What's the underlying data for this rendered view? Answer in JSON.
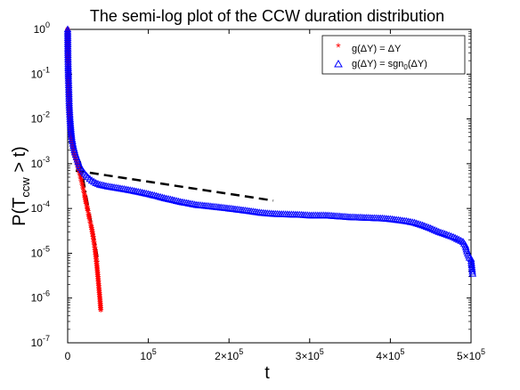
{
  "chart_data": {
    "type": "scatter",
    "title": "The semi-log plot of the CCW duration distribution",
    "xlabel": "t",
    "ylabel": "P(T_ccw > t)",
    "ylabel_parts": {
      "main": "P(T",
      "sub": "ccw",
      "tail": " > t)"
    },
    "xscale": "linear",
    "yscale": "log",
    "xlim": [
      0,
      500000
    ],
    "ylim": [
      1e-07,
      1
    ],
    "grid": false,
    "legend_position": "top-right",
    "x_ticks": [
      {
        "value": 0,
        "label": "0"
      },
      {
        "value": 100000,
        "label": "10",
        "exp": "5",
        "mult": ""
      },
      {
        "value": 200000,
        "label": "2×10",
        "exp": "5"
      },
      {
        "value": 300000,
        "label": "3×10",
        "exp": "5"
      },
      {
        "value": 400000,
        "label": "4×10",
        "exp": "5"
      },
      {
        "value": 500000,
        "label": "5×10",
        "exp": "5"
      }
    ],
    "y_ticks": [
      {
        "value": 1e-07,
        "label": "10",
        "exp": "-7"
      },
      {
        "value": 1e-06,
        "label": "10",
        "exp": "-6"
      },
      {
        "value": 1e-05,
        "label": "10",
        "exp": "-5"
      },
      {
        "value": 0.0001,
        "label": "10",
        "exp": "-4"
      },
      {
        "value": 0.001,
        "label": "10",
        "exp": "-3"
      },
      {
        "value": 0.01,
        "label": "10",
        "exp": "-2"
      },
      {
        "value": 0.1,
        "label": "10",
        "exp": "-1"
      },
      {
        "value": 1,
        "label": "10",
        "exp": "0"
      }
    ],
    "series": [
      {
        "name": "g(ΔY) = ΔY",
        "marker": "asterisk",
        "color": "#ff0000",
        "points": [
          [
            0,
            1.0
          ],
          [
            200,
            0.6
          ],
          [
            400,
            0.3
          ],
          [
            600,
            0.2
          ],
          [
            800,
            0.12
          ],
          [
            1000,
            0.08
          ],
          [
            1300,
            0.05
          ],
          [
            1600,
            0.03
          ],
          [
            2000,
            0.02
          ],
          [
            2500,
            0.012
          ],
          [
            3000,
            0.008
          ],
          [
            3500,
            0.006
          ],
          [
            4000,
            0.0045
          ],
          [
            5000,
            0.0032
          ],
          [
            6000,
            0.0025
          ],
          [
            7000,
            0.002
          ],
          [
            8000,
            0.0017
          ],
          [
            9000,
            0.0015
          ],
          [
            10000,
            0.0013
          ],
          [
            11000,
            0.0011
          ],
          [
            12000,
            0.00095
          ],
          [
            13000,
            0.00082
          ],
          [
            14000,
            0.0007
          ],
          [
            15000,
            0.0006
          ],
          [
            16000,
            0.0005
          ],
          [
            17000,
            0.00042
          ],
          [
            18000,
            0.00035
          ],
          [
            19000,
            0.00029
          ],
          [
            20000,
            0.00024
          ],
          [
            21000,
            0.0002
          ],
          [
            22000,
            0.00016
          ],
          [
            23000,
            0.00013
          ],
          [
            24000,
            0.00011
          ],
          [
            25000,
            9e-05
          ],
          [
            26000,
            7.5e-05
          ],
          [
            27000,
            6e-05
          ],
          [
            28000,
            5e-05
          ],
          [
            29000,
            4.2e-05
          ],
          [
            30000,
            3.4e-05
          ],
          [
            31000,
            2.7e-05
          ],
          [
            32000,
            2.1e-05
          ],
          [
            33000,
            1.6e-05
          ],
          [
            34000,
            1.2e-05
          ],
          [
            35000,
            8.5e-06
          ],
          [
            36000,
            5.8e-06
          ],
          [
            37000,
            3.8e-06
          ],
          [
            38000,
            2.4e-06
          ],
          [
            39000,
            1.5e-06
          ],
          [
            40000,
            9.5e-07
          ],
          [
            41000,
            5.5e-07
          ]
        ]
      },
      {
        "name": "g(ΔY) = sgn_0(ΔY)",
        "name_parts": {
          "main": "g(ΔY) = sgn",
          "sub": "0",
          "tail": "(ΔY)"
        },
        "marker": "triangle",
        "color": "#0000ff",
        "points": [
          [
            0,
            1.0
          ],
          [
            300,
            0.3
          ],
          [
            600,
            0.15
          ],
          [
            1000,
            0.08
          ],
          [
            1500,
            0.04
          ],
          [
            2000,
            0.02
          ],
          [
            3000,
            0.01
          ],
          [
            4000,
            0.006
          ],
          [
            5000,
            0.004
          ],
          [
            7000,
            0.0025
          ],
          [
            9000,
            0.0018
          ],
          [
            11000,
            0.0014
          ],
          [
            13000,
            0.0011
          ],
          [
            15000,
            0.00088
          ],
          [
            18000,
            0.00072
          ],
          [
            21000,
            0.0006
          ],
          [
            25000,
            0.0005
          ],
          [
            30000,
            0.00042
          ],
          [
            35000,
            0.00037
          ],
          [
            40000,
            0.00034
          ],
          [
            50000,
            0.00031
          ],
          [
            60000,
            0.00029
          ],
          [
            70000,
            0.00027
          ],
          [
            80000,
            0.00025
          ],
          [
            90000,
            0.00023
          ],
          [
            100000,
            0.00021
          ],
          [
            110000,
            0.00019
          ],
          [
            120000,
            0.00017
          ],
          [
            130000,
            0.000155
          ],
          [
            140000,
            0.00014
          ],
          [
            150000,
            0.00013
          ],
          [
            160000,
            0.00012
          ],
          [
            170000,
            0.000115
          ],
          [
            180000,
            0.00011
          ],
          [
            190000,
            0.000105
          ],
          [
            200000,
            0.0001
          ],
          [
            210000,
            9.5e-05
          ],
          [
            220000,
            9e-05
          ],
          [
            230000,
            8.5e-05
          ],
          [
            240000,
            8e-05
          ],
          [
            250000,
            7.7e-05
          ],
          [
            260000,
            7.5e-05
          ],
          [
            270000,
            7.4e-05
          ],
          [
            280000,
            7.3e-05
          ],
          [
            290000,
            7.2e-05
          ],
          [
            300000,
            7e-05
          ],
          [
            310000,
            7e-05
          ],
          [
            320000,
            7e-05
          ],
          [
            330000,
            6.8e-05
          ],
          [
            340000,
            6.6e-05
          ],
          [
            350000,
            6.4e-05
          ],
          [
            360000,
            6.3e-05
          ],
          [
            370000,
            6.2e-05
          ],
          [
            380000,
            6.1e-05
          ],
          [
            390000,
            6e-05
          ],
          [
            400000,
            5.8e-05
          ],
          [
            410000,
            5.5e-05
          ],
          [
            420000,
            5.2e-05
          ],
          [
            430000,
            4.8e-05
          ],
          [
            440000,
            4.2e-05
          ],
          [
            450000,
            3.6e-05
          ],
          [
            460000,
            3e-05
          ],
          [
            470000,
            2.6e-05
          ],
          [
            478000,
            2.3e-05
          ],
          [
            485000,
            2e-05
          ],
          [
            490000,
            1.8e-05
          ],
          [
            493000,
            1.5e-05
          ],
          [
            495000,
            1.1e-05
          ],
          [
            498000,
            8e-06
          ],
          [
            500000,
            7.5e-06
          ],
          [
            502000,
            3.5e-06
          ]
        ]
      }
    ],
    "guide_lines": [
      {
        "style": "dashed",
        "color": "#000000",
        "points": [
          [
            10000,
            0.0007
          ],
          [
            255000,
            0.00015
          ]
        ]
      },
      {
        "style": "dashdot",
        "color": "#000000",
        "points": [
          [
            15000,
            0.00115
          ],
          [
            38000,
            6.5e-06
          ]
        ]
      }
    ]
  }
}
